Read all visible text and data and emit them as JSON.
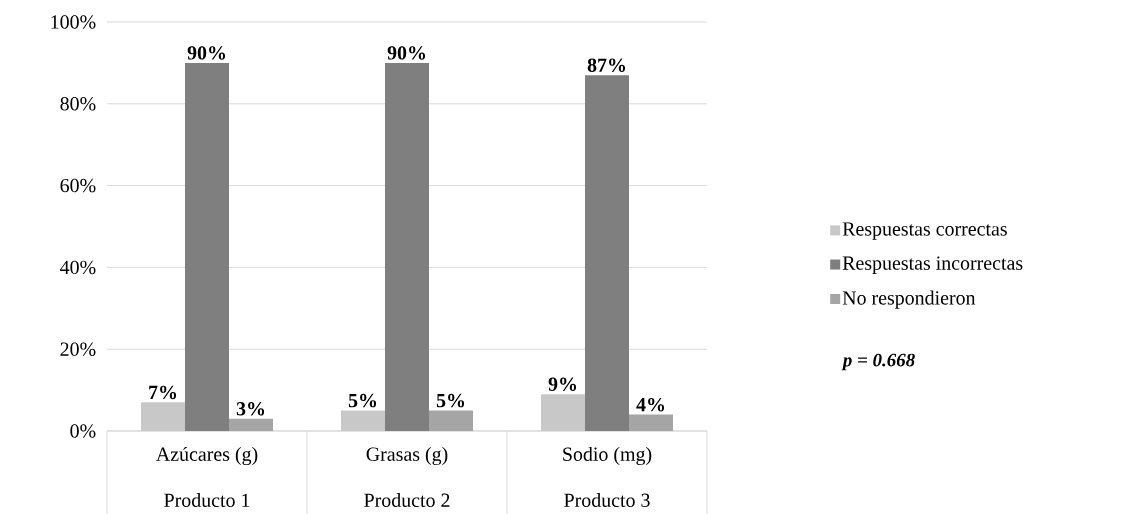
{
  "chart_data": {
    "type": "bar",
    "categories": [
      "Azúcares (g)",
      "Grasas (g)",
      "Sodio (mg)"
    ],
    "series": [
      {
        "name": "Respuestas correctas",
        "color": "#c8c8c8",
        "values": [
          7,
          5,
          9
        ],
        "value_labels": [
          "7%",
          "5%",
          "9%"
        ]
      },
      {
        "name": "Respuestas incorrectas",
        "color": "#7f7f7f",
        "values": [
          90,
          90,
          87
        ],
        "value_labels": [
          "90%",
          "90%",
          "87%"
        ]
      },
      {
        "name": "No respondieron",
        "color": "#a5a5a5",
        "values": [
          3,
          5,
          4
        ],
        "value_labels": [
          "3%",
          "5%",
          "4%"
        ]
      }
    ],
    "ylim": [
      0,
      100
    ],
    "yticks": [
      {
        "value": 0,
        "label": "0%"
      },
      {
        "value": 20,
        "label": "20%"
      },
      {
        "value": 40,
        "label": "40%"
      },
      {
        "value": 60,
        "label": "60%"
      },
      {
        "value": 80,
        "label": "80%"
      },
      {
        "value": 100,
        "label": "100%"
      }
    ],
    "grid": "y",
    "legend": "right",
    "annotations": [
      "Producto 1",
      "Producto 2",
      "Producto 3",
      "p = 0.668"
    ]
  }
}
